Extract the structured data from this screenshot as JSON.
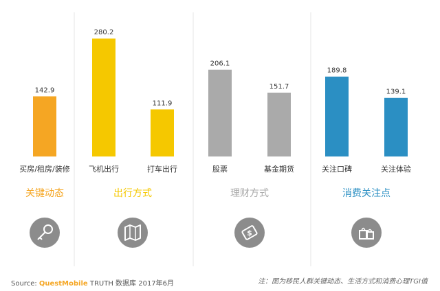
{
  "chart_data": {
    "type": "bar",
    "categories": [
      "买房/租房/装修",
      "飞机出行",
      "打车出行",
      "股票",
      "基金期货",
      "关注口碑",
      "关注体验"
    ],
    "values": [
      142.9,
      280.2,
      111.9,
      206.1,
      151.7,
      189.8,
      139.1
    ],
    "value_labels": [
      "142.9",
      "280.2",
      "111.9",
      "206.1",
      "151.7",
      "189.8",
      "139.1"
    ],
    "ylim": [
      0,
      300
    ],
    "grid": false,
    "legend": "none",
    "groups": [
      {
        "label": "关键动态",
        "color": "#f5a623",
        "icon": "key-icon",
        "count": 1
      },
      {
        "label": "出行方式",
        "color": "#f5c800",
        "icon": "map-icon",
        "count": 2
      },
      {
        "label": "理财方式",
        "color": "#aaaaaa",
        "icon": "money-icon",
        "count": 2
      },
      {
        "label": "消费关注点",
        "color": "#2b8fc3",
        "icon": "shopping-bag-icon",
        "count": 2
      }
    ],
    "bar_colors": [
      "#f5a623",
      "#f5c800",
      "#f5c800",
      "#aaaaaa",
      "#aaaaaa",
      "#2b8fc3",
      "#2b8fc3"
    ]
  },
  "footer": {
    "source_prefix": "Source:",
    "source_brand": "QuestMobile",
    "source_suffix": "TRUTH 数据库 2017年6月",
    "note": "注：图为移民人群关键动态、生活方式和消费心理TGI值"
  }
}
